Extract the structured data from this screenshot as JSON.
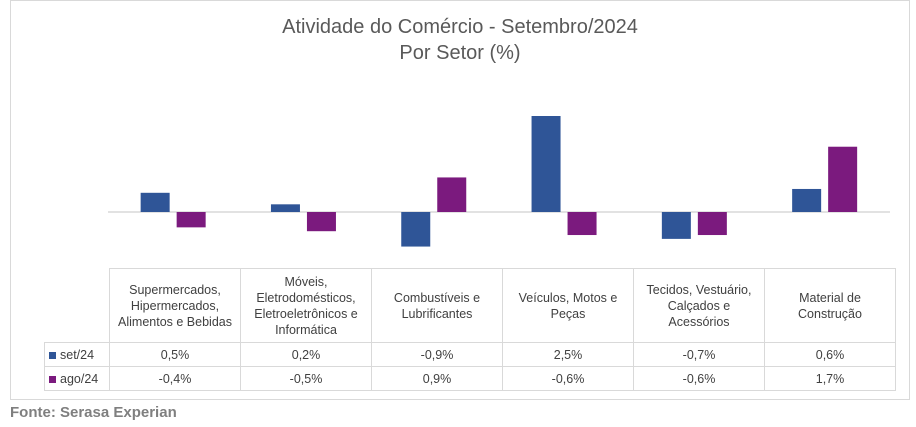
{
  "chart_data": {
    "type": "bar",
    "title": "Atividade do Comércio - Setembro/2024",
    "subtitle": "Por Setor (%)",
    "categories": [
      "Supermercados, Hipermercados, Alimentos e Bebidas",
      "Móveis, Eletrodomésticos, Eletroeletrônicos e Informática",
      "Combustíveis e Lubrificantes",
      "Veículos, Motos e Peças",
      "Tecidos, Vestuário, Calçados e Acessórios",
      "Material de Construção"
    ],
    "series": [
      {
        "name": "set/24",
        "color": "#2f5597",
        "values": [
          0.5,
          0.2,
          -0.9,
          2.5,
          -0.7,
          0.6
        ],
        "value_labels": [
          "0,5%",
          "0,2%",
          "-0,9%",
          "2,5%",
          "-0,7%",
          "0,6%"
        ]
      },
      {
        "name": "ago/24",
        "color": "#7b1a7e",
        "values": [
          -0.4,
          -0.5,
          0.9,
          -0.6,
          -0.6,
          1.7
        ],
        "value_labels": [
          "-0,4%",
          "-0,5%",
          "0,9%",
          "-0,6%",
          "-0,6%",
          "1,7%"
        ]
      }
    ],
    "source": "Fonte: Serasa Experian"
  }
}
